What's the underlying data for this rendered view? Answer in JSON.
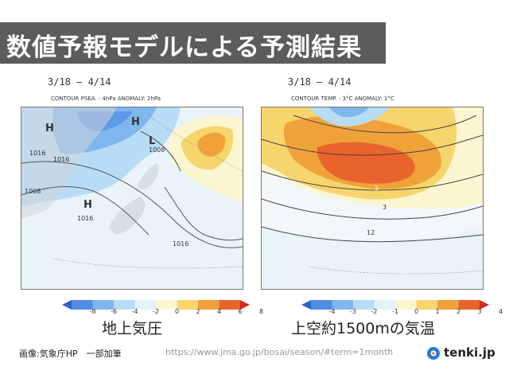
{
  "banner": {
    "title": "数値予報モデルによる予測結果"
  },
  "left_panel": {
    "period": "3/18 – 4/14",
    "meta": "CONTOUR PSEA. : 4hPa     ANOMALY: 2hPa",
    "title": "地上気圧",
    "colorbar_labels": [
      "-8",
      "-6",
      "-4",
      "-2",
      "0",
      "2",
      "4",
      "6",
      "8"
    ],
    "colorbar_colors": [
      "#2f63c9",
      "#4f8de2",
      "#7fb6ee",
      "#b7dcf6",
      "#e2f2fb",
      "#fbf6cf",
      "#f6d56c",
      "#f0a23a",
      "#e8642c",
      "#d42a1c"
    ],
    "map_labels": {
      "h1": "H",
      "h2": "H",
      "h3": "H",
      "l1": "L",
      "iso1": "1016",
      "iso2": "1016",
      "iso3": "1008",
      "iso4": "1016",
      "iso5": "1008",
      "iso6": "1016"
    }
  },
  "right_panel": {
    "period": "3/18 – 4/14",
    "meta": "CONTOUR TEMP. :  3°C     ANOMALY:  1°C",
    "title": "上空約1500mの気温",
    "colorbar_labels": [
      "-4",
      "-3",
      "-2",
      "-1",
      "0",
      "1",
      "2",
      "3",
      "4"
    ],
    "colorbar_colors": [
      "#2f63c9",
      "#4f8de2",
      "#7fb6ee",
      "#b7dcf6",
      "#e2f2fb",
      "#fbf6cf",
      "#f6d56c",
      "#f0a23a",
      "#e8642c",
      "#d42a1c"
    ],
    "map_labels": {
      "t1": "12",
      "t2": "3",
      "t3": "3"
    }
  },
  "footer": {
    "credit": "画像:気象庁HP　一部加筆",
    "url": "https://www.jma.go.jp/bosai/season/#term=1month",
    "logo": "tenki.jp"
  }
}
